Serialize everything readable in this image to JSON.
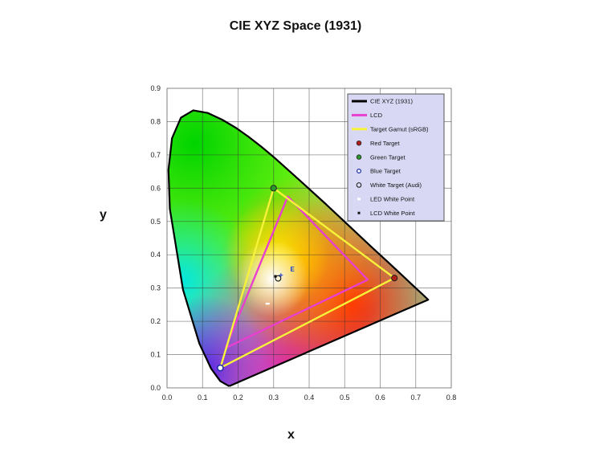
{
  "chart_data": {
    "type": "scatter",
    "title": "CIE XYZ Space (1931)",
    "xlabel": "x",
    "ylabel": "y",
    "xlim": [
      0.0,
      0.8
    ],
    "ylim": [
      0.0,
      0.9
    ],
    "x_ticks": [
      "0.0",
      "0.1",
      "0.2",
      "0.3",
      "0.4",
      "0.5",
      "0.6",
      "0.7",
      "0.8"
    ],
    "y_ticks": [
      "0.0",
      "0.1",
      "0.2",
      "0.3",
      "0.4",
      "0.5",
      "0.6",
      "0.7",
      "0.8",
      "0.9"
    ],
    "grid": true,
    "legend_position": "top-right",
    "series": [
      {
        "name": "CIE XYZ (1931)",
        "kind": "line",
        "color": "#000000",
        "x": [
          0.175,
          0.15,
          0.124,
          0.091,
          0.045,
          0.008,
          0.004,
          0.014,
          0.039,
          0.074,
          0.115,
          0.155,
          0.193,
          0.23,
          0.266,
          0.302,
          0.373,
          0.444,
          0.512,
          0.575,
          0.627,
          0.666,
          0.692,
          0.719,
          0.735,
          0.175
        ],
        "y": [
          0.005,
          0.02,
          0.058,
          0.133,
          0.295,
          0.538,
          0.655,
          0.75,
          0.812,
          0.834,
          0.826,
          0.806,
          0.782,
          0.754,
          0.724,
          0.692,
          0.624,
          0.555,
          0.487,
          0.424,
          0.373,
          0.334,
          0.308,
          0.281,
          0.265,
          0.005
        ]
      },
      {
        "name": "LCD",
        "kind": "line",
        "color": "#e83fd0",
        "x": [
          0.165,
          0.34,
          0.565,
          0.165
        ],
        "y": [
          0.12,
          0.575,
          0.325,
          0.12
        ]
      },
      {
        "name": "Target Gamut (sRGB)",
        "kind": "line",
        "color": "#f7f23a",
        "x": [
          0.15,
          0.3,
          0.64,
          0.15
        ],
        "y": [
          0.06,
          0.6,
          0.33,
          0.06
        ]
      },
      {
        "name": "Red Target",
        "kind": "point",
        "color": "#b02018",
        "x": [
          0.64
        ],
        "y": [
          0.33
        ]
      },
      {
        "name": "Green Target",
        "kind": "point",
        "color": "#2a9a2a",
        "x": [
          0.3
        ],
        "y": [
          0.6
        ]
      },
      {
        "name": "Blue Target",
        "kind": "point",
        "color": "#1c2ea8",
        "x": [
          0.15
        ],
        "y": [
          0.06
        ]
      },
      {
        "name": "White Target (Audi)",
        "kind": "point",
        "color": "#ffffff",
        "x": [
          0.3127
        ],
        "y": [
          0.329
        ]
      },
      {
        "name": "LED White Point",
        "kind": "point",
        "color": "#ffffff",
        "x": [
          0.283
        ],
        "y": [
          0.253
        ]
      },
      {
        "name": "LCD White Point",
        "kind": "point",
        "color": "#111111",
        "x": [
          0.305
        ],
        "y": [
          0.335
        ]
      }
    ],
    "annotations": [
      {
        "text": "E",
        "x": 0.34,
        "y": 0.345
      }
    ]
  }
}
